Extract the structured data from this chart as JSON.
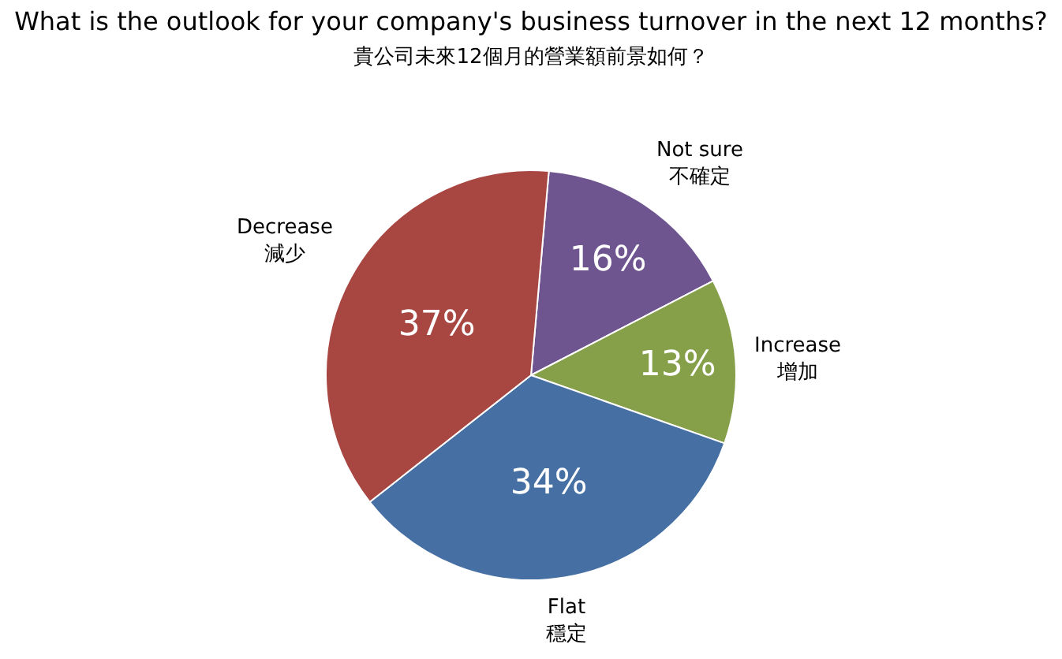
{
  "chart_data": {
    "type": "pie",
    "title": "What is the outlook for your company's business turnover in the next 12 months?",
    "subtitle": "貴公司未來12個月的營業額前景如何？",
    "categories": [
      "Not sure\n不確定",
      "Increase\n增加",
      "Flat\n穩定",
      "Decrease\n減少"
    ],
    "values": [
      16,
      13,
      34,
      37
    ],
    "value_labels": [
      "16%",
      "13%",
      "34%",
      "37%"
    ],
    "colors": [
      "#6e5590",
      "#86a04a",
      "#4670a4",
      "#a84642"
    ],
    "legend": false
  }
}
